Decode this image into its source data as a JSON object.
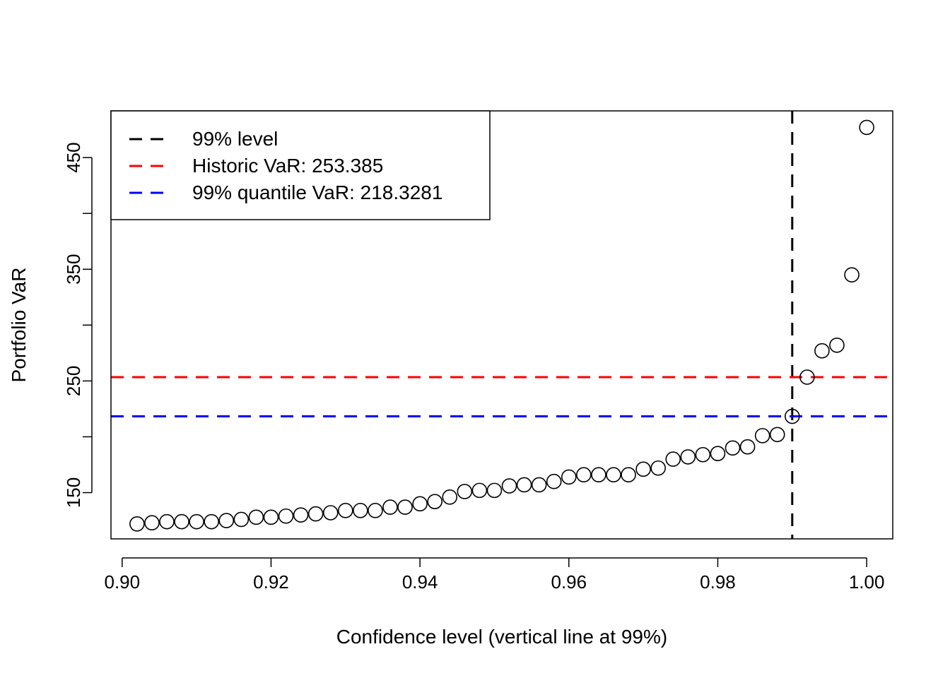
{
  "chart_data": {
    "type": "scatter",
    "xlabel": "Confidence level (vertical line at 99%)",
    "ylabel": "Portfolio VaR",
    "xlim": [
      0.8985,
      1.0035
    ],
    "ylim": [
      108.6,
      491.8
    ],
    "x_ticks": [
      0.9,
      0.92,
      0.94,
      0.96,
      0.98,
      1.0
    ],
    "x_tick_labels": [
      "0.90",
      "0.92",
      "0.94",
      "0.96",
      "0.98",
      "1.00"
    ],
    "y_ticks": [
      150,
      200,
      250,
      300,
      350,
      400,
      450
    ],
    "y_tick_labels": [
      "150",
      "",
      "250",
      "",
      "350",
      "",
      "450"
    ],
    "grid": false,
    "legend_position": "top-left",
    "points": {
      "x": [
        0.902,
        0.904,
        0.906,
        0.908,
        0.91,
        0.912,
        0.914,
        0.916,
        0.918,
        0.92,
        0.922,
        0.924,
        0.926,
        0.928,
        0.93,
        0.932,
        0.934,
        0.936,
        0.938,
        0.94,
        0.942,
        0.944,
        0.946,
        0.948,
        0.95,
        0.952,
        0.954,
        0.956,
        0.958,
        0.96,
        0.962,
        0.964,
        0.966,
        0.968,
        0.97,
        0.972,
        0.974,
        0.976,
        0.978,
        0.98,
        0.982,
        0.984,
        0.986,
        0.988,
        0.99,
        0.992,
        0.994,
        0.996,
        0.998,
        1.0
      ],
      "y": [
        122,
        123,
        124,
        124,
        124,
        124,
        125,
        126,
        128,
        128,
        129,
        130,
        131,
        132,
        134,
        134,
        134,
        137,
        137,
        140,
        142,
        146,
        151,
        152,
        152,
        156,
        157,
        157,
        160,
        164,
        166,
        166,
        166,
        166,
        171,
        172,
        180,
        182,
        184,
        185,
        190,
        191,
        201,
        202,
        218.3,
        253.4,
        277,
        282,
        345,
        477
      ]
    },
    "lines": [
      {
        "name": "99% level",
        "kind": "vertical",
        "value": 0.99,
        "color": "#000000"
      },
      {
        "name": "Historic VaR: 253.385",
        "kind": "horizontal",
        "value": 253.385,
        "color": "#ff0000"
      },
      {
        "name": "99% quantile VaR: 218.3281",
        "kind": "horizontal",
        "value": 218.3281,
        "color": "#0000ff"
      }
    ]
  }
}
